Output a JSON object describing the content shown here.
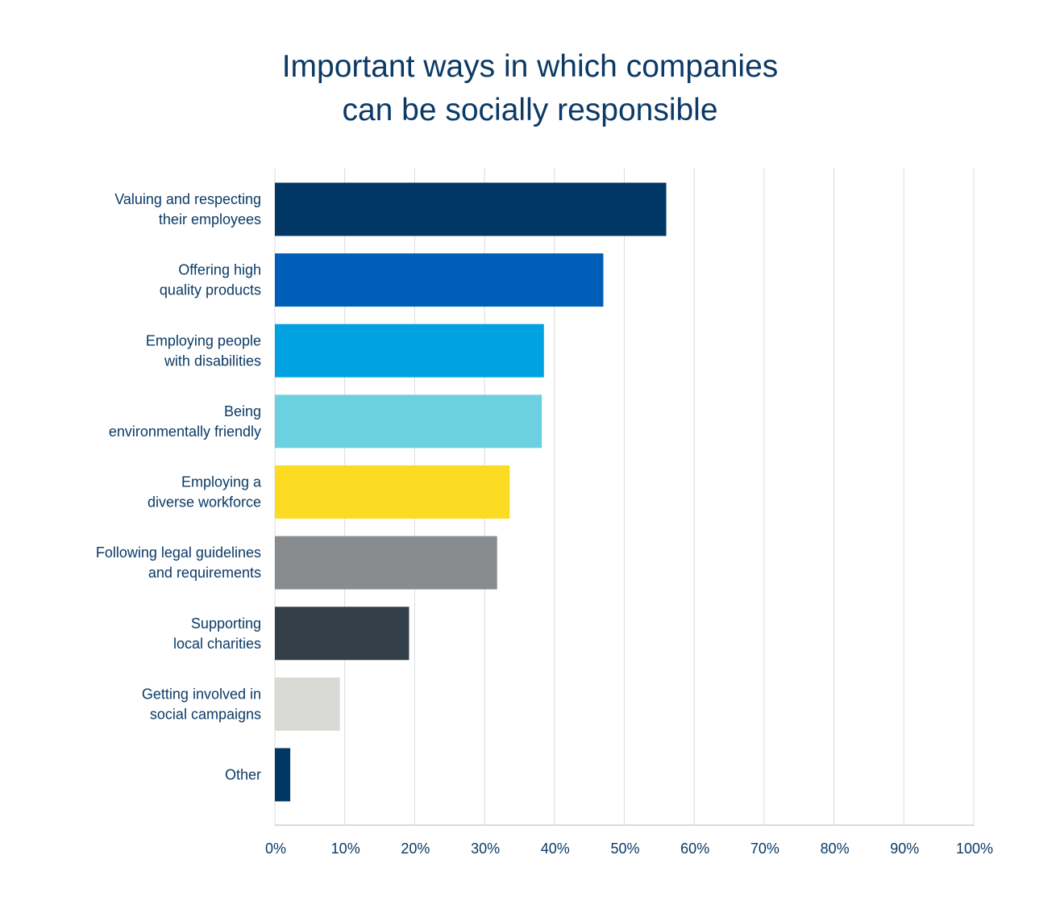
{
  "chart_data": {
    "type": "bar",
    "orientation": "horizontal",
    "title_lines": [
      "Important ways in which companies",
      "can be socially responsible"
    ],
    "categories": [
      [
        "Valuing and respecting",
        "their employees"
      ],
      [
        "Offering high",
        "quality products"
      ],
      [
        "Employing people",
        "with disabilities"
      ],
      [
        "Being",
        "environmentally friendly"
      ],
      [
        "Employing a",
        "diverse workforce"
      ],
      [
        "Following legal guidelines",
        "and requirements"
      ],
      [
        "Supporting",
        "local charities"
      ],
      [
        "Getting involved in",
        "social  campaigns"
      ],
      [
        "Other"
      ]
    ],
    "values": [
      56,
      47,
      38.5,
      38.2,
      33.6,
      31.8,
      19.2,
      9.3,
      2.2
    ],
    "colors": [
      "#003764",
      "#005eb8",
      "#00a3e0",
      "#6bd1e0",
      "#fcdc22",
      "#898c8f",
      "#333f48",
      "#d9d9d6",
      "#003764"
    ],
    "xlim": [
      0,
      100
    ],
    "xticks": [
      "0%",
      "10%",
      "20%",
      "30%",
      "40%",
      "50%",
      "60%",
      "70%",
      "80%",
      "90%",
      "100%"
    ],
    "xlabel": "",
    "ylabel": "",
    "grid": "vertical",
    "legend": "none"
  }
}
